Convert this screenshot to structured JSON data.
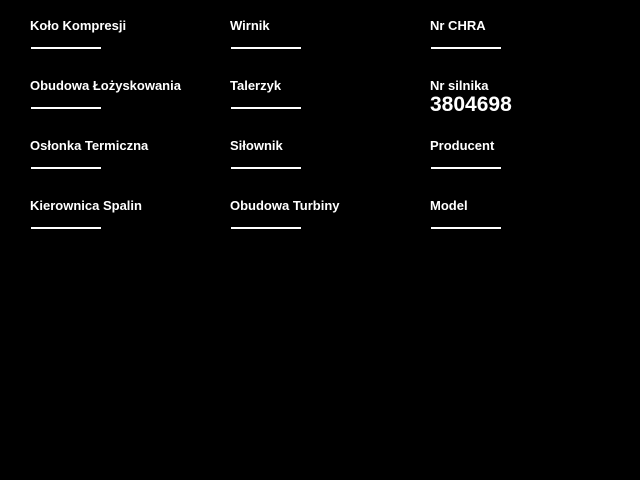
{
  "app": {
    "background_color": "#000000",
    "text_color": "#ffffff",
    "underline_color": "#ffffff"
  },
  "form": {
    "columns": [
      {
        "fields": [
          {
            "label": "Koło Kompresji",
            "value": ""
          },
          {
            "label": "Obudowa Łożyskowania",
            "value": ""
          },
          {
            "label": "Osłonka Termiczna",
            "value": ""
          },
          {
            "label": "Kierownica Spalin",
            "value": ""
          }
        ]
      },
      {
        "fields": [
          {
            "label": "Wirnik",
            "value": ""
          },
          {
            "label": "Talerzyk",
            "value": ""
          },
          {
            "label": "Siłownik",
            "value": ""
          },
          {
            "label": "Obudowa Turbiny",
            "value": ""
          }
        ]
      },
      {
        "fields": [
          {
            "label": "Nr CHRA",
            "value": ""
          },
          {
            "label": "Nr silnika",
            "value": "3804698"
          },
          {
            "label": "Producent",
            "value": ""
          },
          {
            "label": "Model",
            "value": ""
          }
        ]
      }
    ]
  }
}
